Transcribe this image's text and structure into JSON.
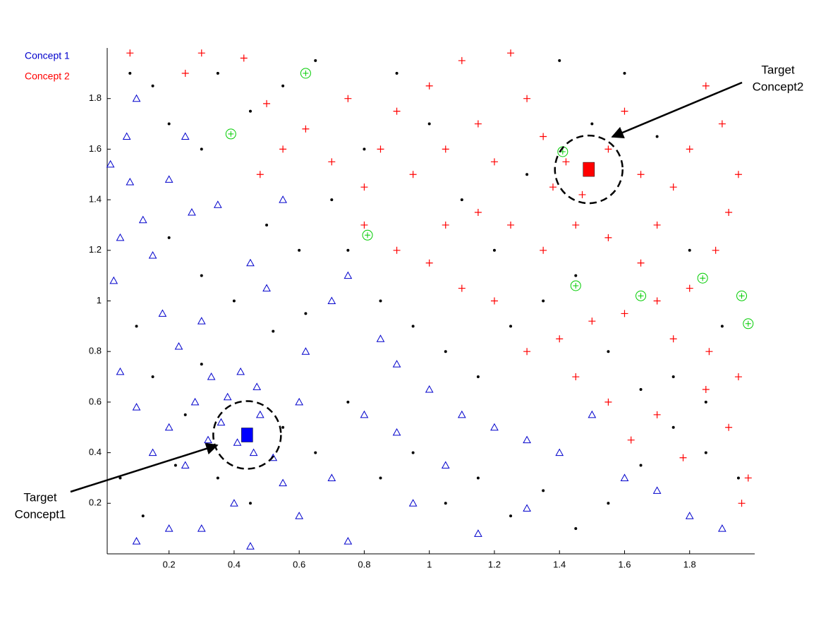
{
  "chart_data": {
    "type": "scatter",
    "legend": "upper left",
    "xlim": [
      0.01,
      2.0
    ],
    "ylim": [
      0,
      2.0
    ],
    "xticks": [
      0.2,
      0.4,
      0.6,
      0.8,
      1,
      1.2,
      1.4,
      1.6,
      1.8
    ],
    "yticks": [
      0.2,
      0.4,
      0.6,
      0.8,
      1,
      1.2,
      1.4,
      1.6,
      1.8
    ],
    "annotations": [
      {
        "lines": [
          "Target",
          "Concept1"
        ]
      },
      {
        "lines": [
          "Target",
          "Concept2"
        ]
      }
    ],
    "series": [
      {
        "name": "Concept 1",
        "color": "#0000cc",
        "marker": "triangle",
        "x": [
          0.02,
          0.05,
          0.07,
          0.1,
          0.08,
          0.12,
          0.03,
          0.15,
          0.2,
          0.25,
          0.27,
          0.18,
          0.23,
          0.3,
          0.05,
          0.1,
          0.15,
          0.2,
          0.25,
          0.28,
          0.32,
          0.36,
          0.38,
          0.41,
          0.46,
          0.48,
          0.52,
          0.55,
          0.6,
          0.4,
          0.3,
          0.2,
          0.1,
          0.45,
          0.35,
          0.45,
          0.5,
          0.55,
          0.62,
          0.7,
          0.75,
          0.85,
          0.9,
          0.8,
          0.9,
          1.0,
          1.1,
          1.2,
          1.3,
          1.4,
          1.5,
          1.6,
          1.7,
          1.8,
          1.9,
          1.05,
          0.95,
          0.75,
          1.15,
          1.3,
          0.7,
          0.6,
          0.33,
          0.42,
          0.47
        ],
        "values": [
          1.54,
          1.25,
          1.65,
          1.8,
          1.47,
          1.32,
          1.08,
          1.18,
          1.48,
          1.65,
          1.35,
          0.95,
          0.82,
          0.92,
          0.72,
          0.58,
          0.4,
          0.5,
          0.35,
          0.6,
          0.45,
          0.52,
          0.62,
          0.44,
          0.4,
          0.55,
          0.38,
          0.28,
          0.6,
          0.2,
          0.1,
          0.1,
          0.05,
          0.03,
          1.38,
          1.15,
          1.05,
          1.4,
          0.8,
          1.0,
          1.1,
          0.85,
          0.75,
          0.55,
          0.48,
          0.65,
          0.55,
          0.5,
          0.45,
          0.4,
          0.55,
          0.3,
          0.25,
          0.15,
          0.1,
          0.35,
          0.2,
          0.05,
          0.08,
          0.18,
          0.3,
          0.15,
          0.7,
          0.72,
          0.66
        ]
      },
      {
        "name": "Concept 2",
        "color": "#ff0000",
        "marker": "plus",
        "x": [
          0.08,
          0.25,
          0.3,
          0.43,
          0.5,
          0.55,
          0.48,
          0.62,
          0.7,
          0.75,
          0.8,
          0.85,
          0.9,
          0.95,
          1.0,
          1.05,
          1.1,
          1.15,
          1.2,
          1.25,
          1.3,
          1.35,
          1.38,
          1.42,
          1.47,
          1.55,
          1.6,
          1.65,
          1.7,
          1.75,
          1.8,
          1.85,
          1.9,
          1.95,
          1.92,
          1.88,
          1.8,
          1.7,
          1.6,
          1.5,
          1.4,
          1.3,
          1.2,
          1.1,
          1.0,
          0.9,
          0.8,
          1.45,
          1.55,
          1.62,
          1.7,
          1.78,
          1.85,
          1.92,
          1.98,
          1.96,
          1.86,
          1.95,
          1.75,
          1.65,
          1.55,
          1.45,
          1.35,
          1.25,
          1.15,
          1.05
        ],
        "values": [
          1.98,
          1.9,
          1.98,
          1.96,
          1.78,
          1.6,
          1.5,
          1.68,
          1.55,
          1.8,
          1.45,
          1.6,
          1.75,
          1.5,
          1.85,
          1.6,
          1.95,
          1.7,
          1.55,
          1.98,
          1.8,
          1.65,
          1.45,
          1.55,
          1.42,
          1.6,
          1.75,
          1.5,
          1.3,
          1.45,
          1.6,
          1.85,
          1.7,
          1.5,
          1.35,
          1.2,
          1.05,
          1.0,
          0.95,
          0.92,
          0.85,
          0.8,
          1.0,
          1.05,
          1.15,
          1.2,
          1.3,
          0.7,
          0.6,
          0.45,
          0.55,
          0.38,
          0.65,
          0.5,
          0.3,
          0.2,
          0.8,
          0.7,
          0.85,
          1.15,
          1.25,
          1.3,
          1.2,
          1.3,
          1.35,
          1.3
        ]
      },
      {
        "color": "#000000",
        "marker": "dot",
        "x": [
          0.08,
          0.15,
          0.2,
          0.3,
          0.35,
          0.45,
          0.55,
          0.65,
          0.7,
          0.75,
          0.6,
          0.5,
          0.4,
          0.3,
          0.2,
          0.1,
          0.15,
          0.25,
          0.35,
          0.45,
          0.55,
          0.65,
          0.75,
          0.85,
          0.95,
          1.05,
          1.15,
          1.25,
          1.35,
          1.45,
          1.55,
          1.65,
          1.75,
          1.85,
          1.95,
          1.9,
          1.8,
          1.7,
          1.6,
          1.5,
          1.4,
          1.3,
          1.2,
          1.1,
          1.0,
          0.9,
          0.8,
          0.85,
          0.95,
          1.05,
          1.15,
          1.25,
          1.35,
          1.45,
          1.55,
          1.65,
          1.75,
          1.85,
          0.05,
          0.12,
          0.22,
          0.3,
          0.52,
          0.62
        ],
        "values": [
          1.9,
          1.85,
          1.7,
          1.6,
          1.9,
          1.75,
          1.85,
          1.95,
          1.4,
          1.2,
          1.2,
          1.3,
          1.0,
          1.1,
          1.25,
          0.9,
          0.7,
          0.55,
          0.3,
          0.2,
          0.5,
          0.4,
          0.6,
          0.3,
          0.4,
          0.2,
          0.3,
          0.15,
          0.25,
          0.1,
          0.2,
          0.35,
          0.5,
          0.4,
          0.3,
          0.9,
          1.2,
          1.65,
          1.9,
          1.7,
          1.95,
          1.5,
          1.2,
          1.4,
          1.7,
          1.9,
          1.6,
          1.0,
          0.9,
          0.8,
          0.7,
          0.9,
          1.0,
          1.1,
          0.8,
          0.65,
          0.7,
          0.6,
          0.3,
          0.15,
          0.35,
          0.75,
          0.88,
          0.95
        ]
      },
      {
        "color": "#00cc00",
        "marker": "circle",
        "x": [
          0.62,
          0.39,
          0.81,
          1.41,
          1.45,
          1.65,
          1.84,
          1.96,
          1.98
        ],
        "values": [
          1.9,
          1.66,
          1.26,
          1.59,
          1.06,
          1.02,
          1.09,
          1.02,
          0.91
        ]
      },
      {
        "color": "#0000ff",
        "marker": "square",
        "x": [
          0.44
        ],
        "values": [
          0.47
        ]
      },
      {
        "color": "#ff0000",
        "marker": "square",
        "x": [
          1.49
        ],
        "values": [
          1.52
        ]
      }
    ]
  }
}
